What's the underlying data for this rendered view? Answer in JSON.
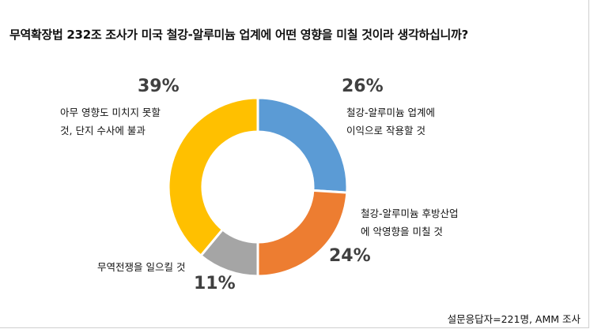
{
  "chart_data": {
    "type": "pie",
    "title": "무역확장법 232조 조사가 미국 철강-알루미늄 업계에 어떤 영향을 미칠 것이라 생각하십니까?",
    "slices": [
      {
        "label_lines": [
          "철강-알루미늄 업계에",
          "이익으로 작용할 것"
        ],
        "value": 26,
        "value_label": "26%",
        "color": "#5B9BD5"
      },
      {
        "label_lines": [
          "철강-알루미늄 후방산업",
          "에 악영향을 미칠 것"
        ],
        "value": 24,
        "value_label": "24%",
        "color": "#ED7D31"
      },
      {
        "label_lines": [
          "무역전쟁을 일으킬 것"
        ],
        "value": 11,
        "value_label": "11%",
        "color": "#A5A5A5"
      },
      {
        "label_lines": [
          "아무 영향도 미치지 못할",
          "것, 단지 수사에 불과"
        ],
        "value": 39,
        "value_label": "39%",
        "color": "#FFC000"
      }
    ],
    "donut": true,
    "legend": "none",
    "footnote": "설문응답자=221명, AMM 조사"
  }
}
